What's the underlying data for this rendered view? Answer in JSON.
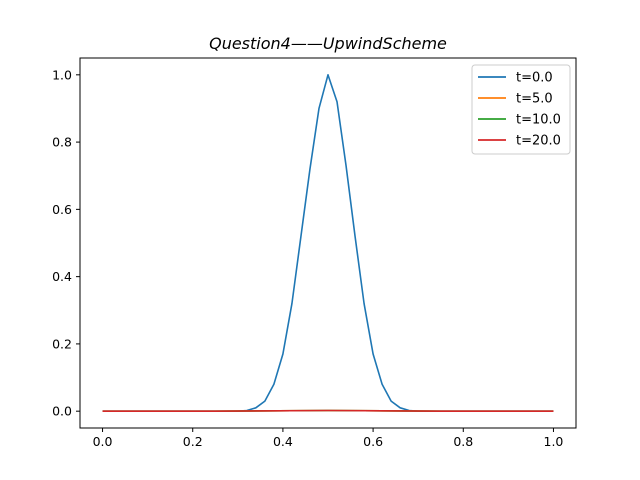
{
  "chart_data": {
    "type": "line",
    "title": "Question4——UpwindScheme",
    "xlabel": "",
    "ylabel": "",
    "xlim": [
      -0.05,
      1.05
    ],
    "ylim": [
      -0.05,
      1.05
    ],
    "x_ticks": [
      0.0,
      0.2,
      0.4,
      0.6,
      0.8,
      1.0
    ],
    "x_tick_labels": [
      "0.0",
      "0.2",
      "0.4",
      "0.6",
      "0.8",
      "1.0"
    ],
    "y_ticks": [
      0.0,
      0.2,
      0.4,
      0.6,
      0.8,
      1.0
    ],
    "y_tick_labels": [
      "0.0",
      "0.2",
      "0.4",
      "0.6",
      "0.8",
      "1.0"
    ],
    "grid": false,
    "legend_position": "top-right",
    "series": [
      {
        "name": "t=0.0",
        "color": "#1f77b4",
        "x": [
          0.0,
          0.1,
          0.2,
          0.3,
          0.32,
          0.34,
          0.36,
          0.38,
          0.4,
          0.42,
          0.44,
          0.46,
          0.48,
          0.5,
          0.52,
          0.54,
          0.56,
          0.58,
          0.6,
          0.62,
          0.64,
          0.66,
          0.68,
          0.7,
          0.8,
          0.9,
          1.0
        ],
        "y": [
          0.0,
          0.0,
          0.0,
          0.0,
          0.002,
          0.01,
          0.03,
          0.08,
          0.17,
          0.32,
          0.52,
          0.72,
          0.9,
          1.0,
          0.92,
          0.73,
          0.52,
          0.32,
          0.17,
          0.08,
          0.03,
          0.01,
          0.002,
          0.0,
          0.0,
          0.0,
          0.0
        ]
      },
      {
        "name": "t=5.0",
        "color": "#ff7f0e",
        "x": [
          0.0,
          0.25,
          0.5,
          0.75,
          1.0
        ],
        "y": [
          0.0,
          0.0,
          0.002,
          0.0,
          0.0
        ]
      },
      {
        "name": "t=10.0",
        "color": "#2ca02c",
        "x": [
          0.0,
          0.25,
          0.5,
          0.75,
          1.0
        ],
        "y": [
          0.0,
          0.0,
          0.002,
          0.0,
          0.0
        ]
      },
      {
        "name": "t=20.0",
        "color": "#d62728",
        "x": [
          0.0,
          0.25,
          0.5,
          0.75,
          1.0
        ],
        "y": [
          0.0,
          0.0,
          0.002,
          0.0,
          0.0
        ]
      }
    ]
  }
}
